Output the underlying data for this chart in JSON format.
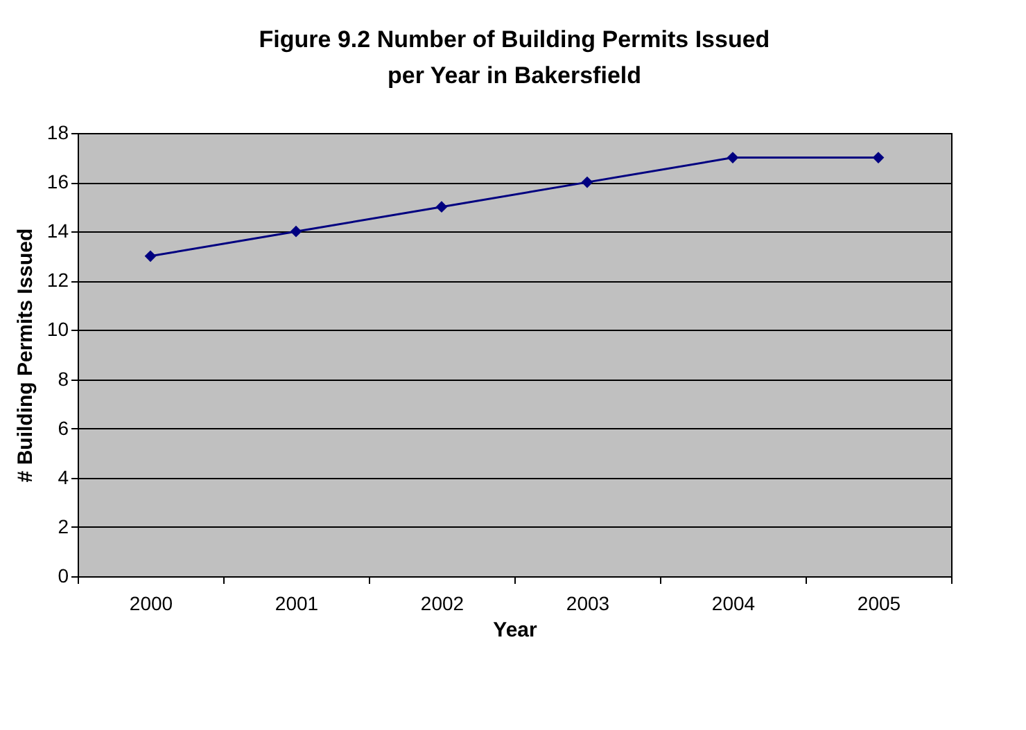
{
  "chart_data": {
    "type": "line",
    "title": "Figure 9.2 Number of Building Permits Issued per Year in Bakersfield",
    "xlabel": "Year",
    "ylabel": "# Building Permits Issued",
    "categories": [
      "2000",
      "2001",
      "2002",
      "2003",
      "2004",
      "2005"
    ],
    "series": [
      {
        "color": "#000080",
        "values": [
          13,
          14,
          15,
          16,
          17,
          17
        ]
      }
    ],
    "ylim": [
      0,
      18
    ],
    "yticks": [
      0,
      2,
      4,
      6,
      8,
      10,
      12,
      14,
      16,
      18
    ],
    "grid": "y",
    "marker": "diamond",
    "line_style": "solid",
    "legend": false
  }
}
